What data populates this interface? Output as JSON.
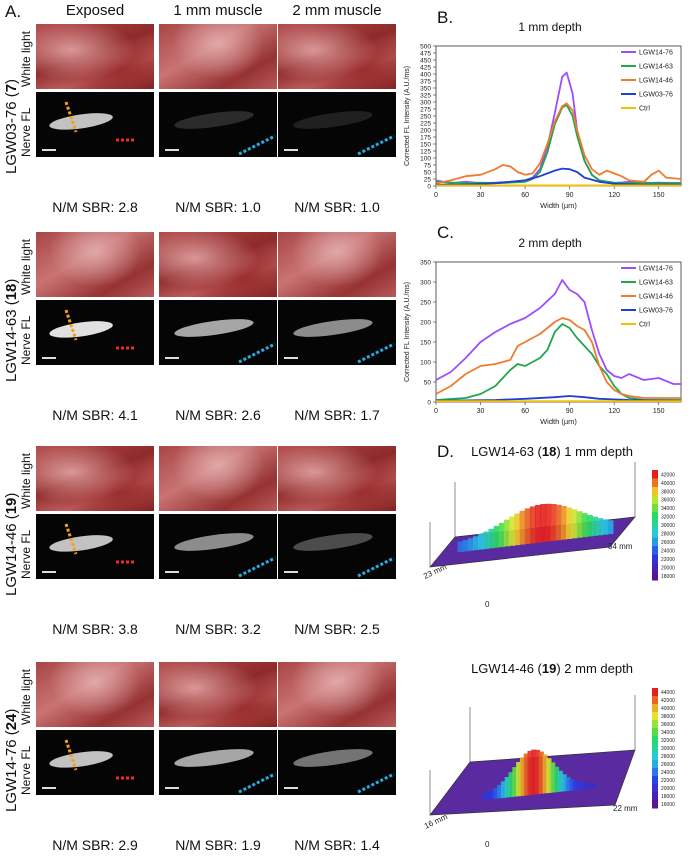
{
  "panels": {
    "a": "A.",
    "b": "B.",
    "c": "C.",
    "d": "D."
  },
  "columns": [
    "Exposed",
    "1 mm muscle",
    "2 mm muscle"
  ],
  "sub_labels": {
    "white": "White light",
    "nerve": "Nerve FL"
  },
  "rows": [
    {
      "compound": "LGW03-76",
      "number": "7",
      "sbr": [
        "N/M SBR: 2.8",
        "N/M SBR: 1.0",
        "N/M SBR: 1.0"
      ],
      "fl_intensity": [
        0.9,
        0.2,
        0.1
      ]
    },
    {
      "compound": "LGW14-63",
      "number": "18",
      "sbr": [
        "N/M SBR: 4.1",
        "N/M SBR: 2.6",
        "N/M SBR: 1.7"
      ],
      "fl_intensity": [
        1.0,
        0.8,
        0.7
      ]
    },
    {
      "compound": "LGW14-46",
      "number": "19",
      "sbr": [
        "N/M SBR: 3.8",
        "N/M SBR: 3.2",
        "N/M SBR: 2.5"
      ],
      "fl_intensity": [
        0.9,
        0.7,
        0.4
      ]
    },
    {
      "compound": "LGW14-76",
      "number": "24",
      "sbr": [
        "N/M SBR: 2.9",
        "N/M SBR: 1.9",
        "N/M SBR: 1.4"
      ],
      "fl_intensity": [
        0.9,
        0.8,
        0.6
      ]
    }
  ],
  "colors": {
    "LGW14-76": "#9b4dff",
    "LGW14-63": "#1fa84a",
    "LGW14-46": "#f07a2e",
    "LGW03-76": "#1f3fd6",
    "Ctrl": "#f2c100",
    "orange_marker": "#f0a020",
    "red_marker": "#e03030",
    "blue_marker": "#2aa8e0"
  },
  "chart_data": [
    {
      "type": "line",
      "title": "1 mm depth",
      "xlabel": "Width (µm)",
      "ylabel": "Corrected FL Intensity (A.U./ms)",
      "xlim": [
        0,
        165
      ],
      "ylim": [
        0,
        500
      ],
      "xticks": [
        0,
        30,
        60,
        90,
        120,
        150
      ],
      "yticks": [
        0,
        25,
        50,
        75,
        100,
        125,
        150,
        175,
        200,
        225,
        250,
        275,
        300,
        325,
        350,
        375,
        400,
        425,
        450,
        475,
        500
      ],
      "series": [
        {
          "name": "LGW14-76",
          "x": [
            0,
            10,
            20,
            30,
            40,
            50,
            60,
            65,
            70,
            75,
            80,
            85,
            88,
            92,
            95,
            100,
            105,
            110,
            120,
            130,
            140,
            150,
            165
          ],
          "y": [
            20,
            10,
            15,
            10,
            12,
            15,
            20,
            30,
            60,
            140,
            260,
            390,
            405,
            330,
            200,
            90,
            40,
            20,
            10,
            15,
            10,
            12,
            10
          ]
        },
        {
          "name": "LGW14-63",
          "x": [
            0,
            10,
            20,
            30,
            40,
            50,
            60,
            65,
            70,
            75,
            80,
            85,
            88,
            92,
            95,
            100,
            105,
            110,
            120,
            130,
            140,
            150,
            165
          ],
          "y": [
            15,
            12,
            10,
            12,
            10,
            12,
            15,
            25,
            50,
            120,
            220,
            280,
            290,
            250,
            180,
            90,
            40,
            20,
            12,
            10,
            12,
            10,
            10
          ]
        },
        {
          "name": "LGW14-46",
          "x": [
            0,
            10,
            20,
            30,
            40,
            45,
            50,
            55,
            60,
            65,
            70,
            75,
            80,
            85,
            88,
            92,
            95,
            100,
            105,
            110,
            115,
            120,
            125,
            130,
            140,
            145,
            150,
            155,
            165
          ],
          "y": [
            10,
            20,
            35,
            40,
            60,
            75,
            70,
            50,
            40,
            45,
            80,
            150,
            230,
            285,
            295,
            270,
            200,
            110,
            60,
            40,
            55,
            45,
            35,
            20,
            15,
            40,
            55,
            30,
            25
          ]
        },
        {
          "name": "LGW03-76",
          "x": [
            0,
            20,
            40,
            60,
            70,
            80,
            85,
            90,
            95,
            100,
            110,
            120,
            140,
            165
          ],
          "y": [
            5,
            5,
            10,
            20,
            35,
            55,
            62,
            60,
            50,
            30,
            15,
            8,
            5,
            5
          ]
        },
        {
          "name": "Ctrl",
          "x": [
            0,
            165
          ],
          "y": [
            2,
            2
          ]
        }
      ]
    },
    {
      "type": "line",
      "title": "2 mm depth",
      "xlabel": "Width (µm)",
      "ylabel": "Corrected FL Intensity (A.U./ms)",
      "xlim": [
        0,
        165
      ],
      "ylim": [
        0,
        350
      ],
      "xticks": [
        0,
        30,
        60,
        90,
        120,
        150
      ],
      "yticks": [
        0,
        50,
        100,
        150,
        200,
        250,
        300,
        350
      ],
      "series": [
        {
          "name": "LGW14-76",
          "x": [
            0,
            10,
            20,
            30,
            40,
            50,
            60,
            70,
            80,
            85,
            90,
            95,
            100,
            105,
            110,
            115,
            120,
            125,
            130,
            140,
            150,
            160,
            165
          ],
          "y": [
            55,
            75,
            110,
            150,
            175,
            195,
            210,
            235,
            270,
            305,
            280,
            270,
            250,
            180,
            120,
            80,
            65,
            60,
            70,
            55,
            60,
            45,
            45
          ]
        },
        {
          "name": "LGW14-63",
          "x": [
            0,
            20,
            30,
            40,
            50,
            55,
            60,
            65,
            70,
            75,
            80,
            85,
            90,
            95,
            100,
            105,
            110,
            115,
            120,
            125,
            130,
            140,
            150,
            165
          ],
          "y": [
            5,
            10,
            20,
            40,
            80,
            95,
            90,
            100,
            110,
            130,
            175,
            195,
            185,
            160,
            140,
            120,
            90,
            70,
            40,
            20,
            10,
            5,
            5,
            5
          ]
        },
        {
          "name": "LGW14-46",
          "x": [
            0,
            10,
            20,
            30,
            40,
            50,
            55,
            60,
            70,
            80,
            85,
            90,
            95,
            100,
            105,
            110,
            115,
            120,
            125,
            130,
            140,
            150,
            165
          ],
          "y": [
            20,
            40,
            70,
            90,
            95,
            105,
            140,
            150,
            170,
            200,
            210,
            205,
            190,
            180,
            150,
            90,
            50,
            30,
            20,
            15,
            10,
            10,
            10
          ]
        },
        {
          "name": "LGW03-76",
          "x": [
            0,
            40,
            60,
            80,
            90,
            100,
            110,
            130,
            165
          ],
          "y": [
            3,
            5,
            8,
            12,
            15,
            12,
            8,
            5,
            3
          ]
        },
        {
          "name": "Ctrl",
          "x": [
            0,
            165
          ],
          "y": [
            2,
            2
          ]
        }
      ]
    }
  ],
  "surface_plots": [
    {
      "title_prefix": "LGW14-63 (",
      "title_bold": "18",
      "title_suffix": ") 1 mm depth",
      "axis_left": "23 mm",
      "axis_right": "34 mm",
      "origin": "0",
      "colorbar": [
        "42000",
        "40000",
        "38000",
        "36000",
        "34000",
        "32000",
        "30000",
        "28000",
        "26000",
        "24000",
        "22000",
        "20000",
        "18000"
      ]
    },
    {
      "title_prefix": "LGW14-46 (",
      "title_bold": "19",
      "title_suffix": ") 2 mm depth",
      "axis_left": "16 mm",
      "axis_right": "22 mm",
      "origin": "0",
      "colorbar": [
        "44000",
        "42000",
        "40000",
        "38000",
        "36000",
        "34000",
        "32000",
        "30000",
        "28000",
        "26000",
        "24000",
        "22000",
        "20000",
        "18000",
        "16000"
      ]
    }
  ]
}
